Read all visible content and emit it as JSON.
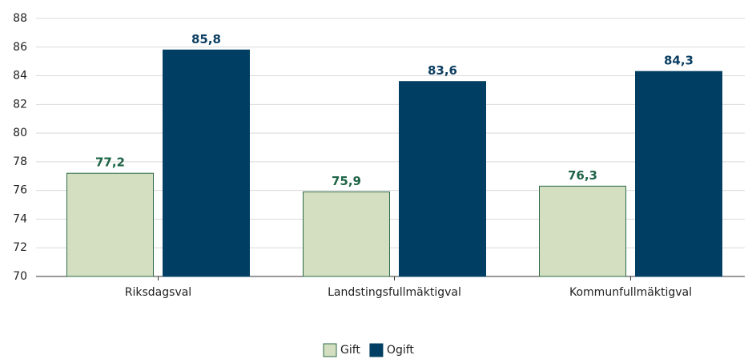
{
  "chart_data": {
    "type": "bar",
    "categories": [
      "Riksdagsval",
      "Landstingsfullmäktigval",
      "Kommunfullmäktigval"
    ],
    "series": [
      {
        "name": "Gift",
        "color": "#d3dfc0",
        "stroke": "#2e6b4a",
        "label_color": "#1f6448",
        "values": [
          77.2,
          75.9,
          76.3
        ],
        "value_labels": [
          "77,2",
          "75,9",
          "76,3"
        ]
      },
      {
        "name": "Ogift",
        "color": "#003f63",
        "stroke": "#003f63",
        "label_color": "#0d3f63",
        "values": [
          85.8,
          83.6,
          84.3
        ],
        "value_labels": [
          "85,8",
          "83,6",
          "84,3"
        ]
      }
    ],
    "ylim": [
      70,
      88
    ],
    "yticks": [
      70,
      72,
      74,
      76,
      78,
      80,
      82,
      84,
      86,
      88
    ],
    "grid": true,
    "legend": "bottom"
  }
}
